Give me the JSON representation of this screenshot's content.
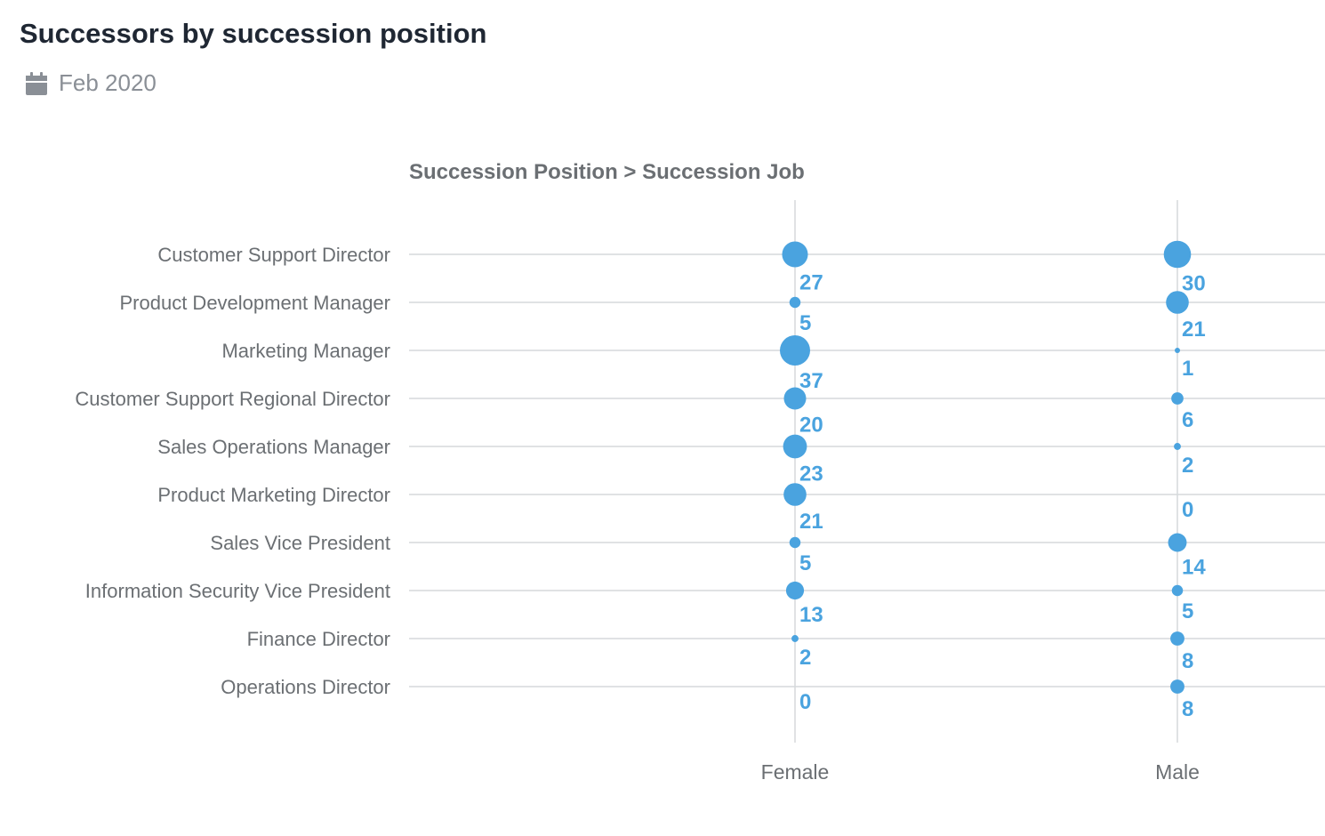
{
  "header": {
    "title": "Successors by succession position",
    "date": "Feb 2020",
    "date_icon": "calendar-icon"
  },
  "chart_data": {
    "type": "scatter",
    "subtype": "bubble-matrix",
    "axis_header": "Succession Position > Succession Job",
    "columns": [
      "Female",
      "Male"
    ],
    "categories": [
      "Customer Support Director",
      "Product Development Manager",
      "Marketing Manager",
      "Customer Support Regional Director",
      "Sales Operations Manager",
      "Product Marketing Director",
      "Sales Vice President",
      "Information Security Vice President",
      "Finance Director",
      "Operations Director"
    ],
    "series": [
      {
        "name": "Female",
        "values": [
          27,
          5,
          37,
          20,
          23,
          21,
          5,
          13,
          2,
          0
        ]
      },
      {
        "name": "Male",
        "values": [
          30,
          21,
          1,
          6,
          2,
          0,
          14,
          5,
          8,
          8
        ]
      }
    ],
    "colors": {
      "bubble": "#4aa3df",
      "label": "#4aa3df",
      "grid": "#d6d9dc"
    },
    "grid": true
  }
}
